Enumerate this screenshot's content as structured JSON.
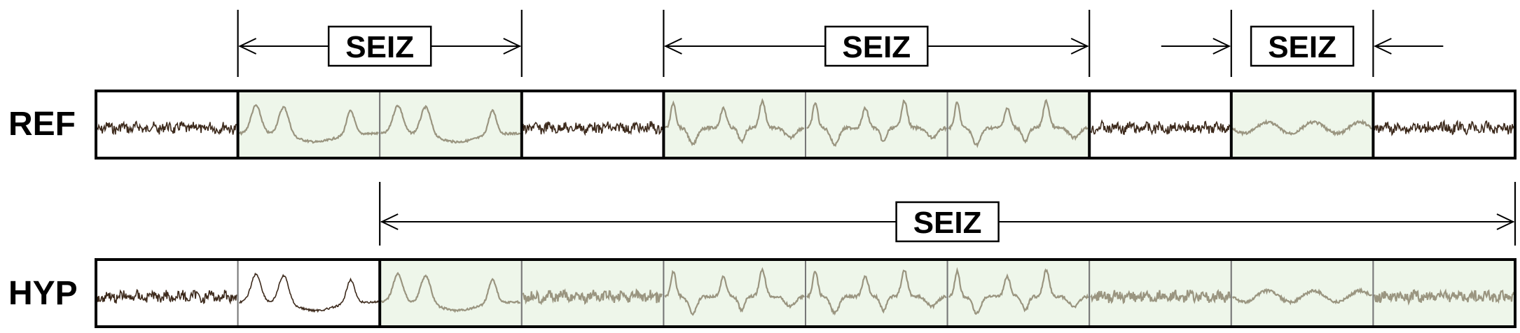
{
  "rows": [
    {
      "label": "REF",
      "segments": [
        "normal",
        "seizure",
        "seizure",
        "normal",
        "seizure",
        "seizure",
        "seizure",
        "normal",
        "seizure",
        "normal"
      ],
      "waveforms": [
        "noise",
        "spikes",
        "spikes",
        "noise",
        "sharp",
        "sharp",
        "sharp",
        "noise",
        "bumps",
        "noise"
      ],
      "events": [
        {
          "label": "SEIZ",
          "start": 1,
          "end": 3,
          "arrows": "outward"
        },
        {
          "label": "SEIZ",
          "start": 4,
          "end": 7,
          "arrows": "outward"
        },
        {
          "label": "SEIZ",
          "start": 8,
          "end": 9,
          "arrows": "inward"
        }
      ]
    },
    {
      "label": "HYP",
      "segments": [
        "normal",
        "normal",
        "seizure",
        "seizure",
        "seizure",
        "seizure",
        "seizure",
        "seizure",
        "seizure",
        "seizure"
      ],
      "waveforms": [
        "noise",
        "spikes",
        "spikes",
        "noise",
        "sharp",
        "sharp",
        "sharp",
        "noise",
        "bumps",
        "noise"
      ],
      "events": [
        {
          "label": "SEIZ",
          "start": 2,
          "end": 10,
          "arrows": "outward"
        }
      ]
    }
  ],
  "colors": {
    "seizure_fill": "#eef6ea",
    "normal_fill": "#ffffff",
    "normal_wave": "#3d2a1c",
    "seizure_wave": "#9a9580",
    "boundary": "#000000",
    "grid_line": "#777777"
  }
}
